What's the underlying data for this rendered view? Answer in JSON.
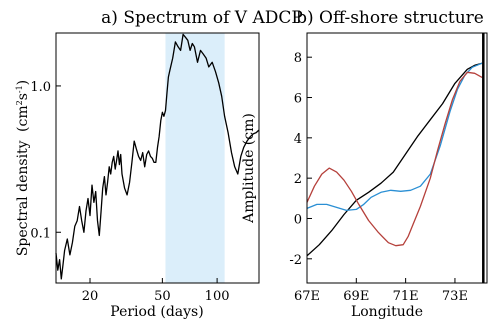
{
  "chart_data": [
    {
      "type": "line",
      "title": "a) Spectrum of V ADCP",
      "xlabel": "Period (days)",
      "ylabel": "Spectral density",
      "ylabel_units": "(cm",
      "ylabel_units_sup1": "2",
      "ylabel_units_mid": "s",
      "ylabel_units_sup2": "-1",
      "ylabel_units_close": ")",
      "x_scale": "log",
      "y_scale": "log",
      "xlim": [
        13,
        170
      ],
      "ylim": [
        0.045,
        2.3
      ],
      "x_ticks": [
        {
          "value": 20,
          "label": "20"
        },
        {
          "value": 50,
          "label": "50"
        },
        {
          "value": 100,
          "label": "100"
        }
      ],
      "y_ticks": [
        {
          "value": 0.1,
          "label": "0.1"
        },
        {
          "value": 1.0,
          "label": "1.0"
        }
      ],
      "shaded_band": {
        "x_from": 52,
        "x_to": 110,
        "color": "#dbeefa"
      },
      "series": [
        {
          "color": "#000000",
          "x": [
            13,
            13.3,
            13.6,
            13.9,
            14.2,
            14.5,
            15.0,
            15.5,
            16.0,
            16.5,
            17.0,
            17.5,
            18.0,
            18.5,
            19.0,
            19.5,
            20.0,
            20.5,
            21.0,
            21.5,
            22.0,
            22.5,
            23.0,
            23.5,
            24.0,
            24.5,
            25.0,
            25.5,
            26.0,
            26.5,
            27.0,
            27.5,
            28.0,
            28.5,
            29.0,
            29.5,
            30.0,
            31.0,
            32.0,
            33.0,
            34.0,
            35.0,
            36.0,
            37.0,
            38.0,
            39.0,
            40.0,
            41.0,
            42.0,
            43.0,
            44.0,
            45.0,
            46.0,
            47.0,
            48.0,
            49.0,
            50.0,
            51.0,
            52.0,
            53.0,
            54.0,
            55.0,
            57.0,
            59.0,
            61.0,
            63.0,
            65.0,
            67.0,
            69.0,
            71.0,
            73.0,
            75.0,
            78.0,
            81.0,
            84.0,
            87.0,
            90.0,
            94.0,
            98.0,
            102.0,
            106.0,
            110.0,
            115.0,
            120.0,
            125.0,
            130.0,
            135.0,
            140.0,
            146.0,
            152.0,
            158.0,
            164.0,
            170.0
          ],
          "y": [
            0.072,
            0.055,
            0.065,
            0.048,
            0.06,
            0.075,
            0.09,
            0.07,
            0.085,
            0.11,
            0.12,
            0.15,
            0.12,
            0.1,
            0.14,
            0.17,
            0.13,
            0.21,
            0.16,
            0.19,
            0.12,
            0.095,
            0.14,
            0.2,
            0.24,
            0.18,
            0.22,
            0.28,
            0.25,
            0.3,
            0.33,
            0.27,
            0.31,
            0.36,
            0.29,
            0.34,
            0.25,
            0.2,
            0.18,
            0.22,
            0.3,
            0.42,
            0.37,
            0.33,
            0.31,
            0.35,
            0.28,
            0.34,
            0.36,
            0.33,
            0.32,
            0.3,
            0.3,
            0.38,
            0.45,
            0.58,
            0.66,
            0.62,
            0.68,
            0.9,
            1.15,
            1.28,
            1.55,
            2.0,
            1.85,
            1.75,
            2.25,
            2.15,
            2.05,
            1.75,
            1.95,
            1.85,
            1.45,
            1.75,
            1.65,
            1.55,
            1.35,
            1.45,
            1.25,
            1.05,
            0.85,
            0.62,
            0.48,
            0.35,
            0.28,
            0.25,
            0.33,
            0.38,
            0.42,
            0.45,
            0.47,
            0.48,
            0.5
          ]
        }
      ]
    },
    {
      "type": "line",
      "title": "b) Off-shore structure",
      "xlabel": "Longitude",
      "ylabel": "Amplitude (cm)",
      "xlim": [
        67,
        74.3
      ],
      "ylim": [
        -3.2,
        9.2
      ],
      "x_ticks": [
        {
          "value": 67,
          "label": "67E"
        },
        {
          "value": 69,
          "label": "69E"
        },
        {
          "value": 71,
          "label": "71E"
        },
        {
          "value": 73,
          "label": "73E"
        }
      ],
      "y_ticks": [
        {
          "value": -2,
          "label": "-2"
        },
        {
          "value": 0,
          "label": "0"
        },
        {
          "value": 2,
          "label": "2"
        },
        {
          "value": 4,
          "label": "4"
        },
        {
          "value": 6,
          "label": "6"
        },
        {
          "value": 8,
          "label": "8"
        }
      ],
      "vertical_line_x": 74.15,
      "series": [
        {
          "color": "#000000",
          "x": [
            67.0,
            67.5,
            68.0,
            68.5,
            69.0,
            69.5,
            70.0,
            70.5,
            71.0,
            71.5,
            72.0,
            72.5,
            73.0,
            73.5,
            73.8,
            74.1
          ],
          "y": [
            -1.85,
            -1.3,
            -0.6,
            0.2,
            0.9,
            1.3,
            1.75,
            2.3,
            3.2,
            4.1,
            4.9,
            5.7,
            6.7,
            7.4,
            7.6,
            7.7
          ]
        },
        {
          "color": "#2a8fd4",
          "x": [
            67.0,
            67.4,
            67.8,
            68.2,
            68.6,
            69.0,
            69.3,
            69.6,
            70.0,
            70.4,
            70.8,
            71.2,
            71.6,
            72.0,
            72.4,
            72.8,
            73.1,
            73.4,
            73.7,
            74.1
          ],
          "y": [
            0.5,
            0.7,
            0.7,
            0.55,
            0.4,
            0.45,
            0.7,
            1.05,
            1.3,
            1.4,
            1.35,
            1.4,
            1.6,
            2.2,
            3.6,
            5.3,
            6.4,
            7.1,
            7.5,
            7.7
          ]
        },
        {
          "color": "#b5403b",
          "x": [
            67.0,
            67.3,
            67.6,
            67.9,
            68.2,
            68.5,
            68.8,
            69.1,
            69.5,
            69.9,
            70.3,
            70.6,
            70.9,
            71.1,
            71.3,
            71.6,
            72.0,
            72.3,
            72.6,
            72.9,
            73.2,
            73.5,
            73.8,
            74.1
          ],
          "y": [
            0.8,
            1.6,
            2.2,
            2.5,
            2.3,
            1.9,
            1.35,
            0.7,
            -0.1,
            -0.7,
            -1.2,
            -1.35,
            -1.3,
            -0.9,
            -0.3,
            0.6,
            2.0,
            3.4,
            4.7,
            5.9,
            6.8,
            7.25,
            7.2,
            7.0
          ]
        }
      ]
    }
  ]
}
